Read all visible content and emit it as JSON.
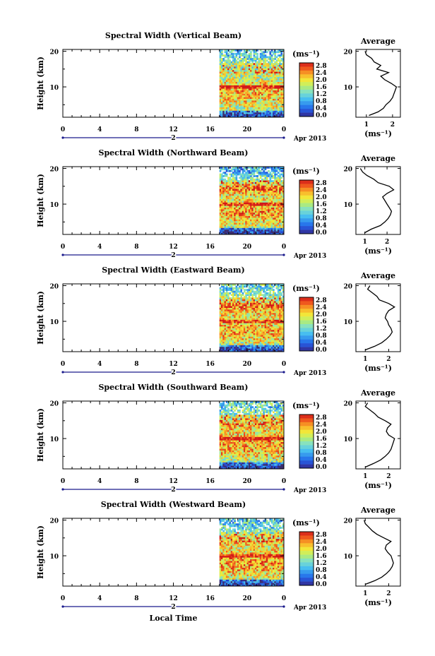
{
  "figure": {
    "date_label": "Apr 2013",
    "date_day": "2",
    "xlabel": "Local Time",
    "colorbar_unit": "(ms⁻¹)",
    "colorbar_ticks": [
      "2.8",
      "2.4",
      "2.0",
      "1.6",
      "1.2",
      "0.8",
      "0.4",
      "0.0"
    ],
    "avg_title": "Average",
    "avg_xlabel": "(ms⁻¹)"
  },
  "chart_data": [
    {
      "type": "heatmap",
      "title": "Spectral Width (Vertical Beam)",
      "ylabel": "Height (km)",
      "xlabel": "Local Time",
      "x_ticks": [
        "0",
        "4",
        "8",
        "12",
        "16",
        "20",
        "0"
      ],
      "y_ticks": [
        "10",
        "20"
      ],
      "xlim": [
        0,
        24
      ],
      "ylim": [
        1.5,
        20.5
      ],
      "data_start_hour": 17,
      "color_range": [
        0.0,
        2.8
      ],
      "profile": {
        "title": "Average",
        "x_ticks": [
          "1",
          "2"
        ],
        "xlim": [
          0.6,
          2.3
        ],
        "height": [
          2,
          3,
          4,
          5,
          6,
          7,
          8,
          9,
          10,
          11,
          12,
          13,
          14,
          15,
          16,
          17,
          18,
          19,
          20
        ],
        "width": [
          1.1,
          1.45,
          1.65,
          1.75,
          1.9,
          2.0,
          2.05,
          2.1,
          2.15,
          1.95,
          1.7,
          1.55,
          1.85,
          1.4,
          1.55,
          1.3,
          1.2,
          1.0,
          0.95
        ]
      }
    },
    {
      "type": "heatmap",
      "title": "Spectral Width (Northward Beam)",
      "ylabel": "Height (km)",
      "xlabel": "Local Time",
      "x_ticks": [
        "0",
        "4",
        "8",
        "12",
        "16",
        "20",
        "0"
      ],
      "y_ticks": [
        "10",
        "20"
      ],
      "xlim": [
        0,
        24
      ],
      "ylim": [
        1.5,
        20.5
      ],
      "data_start_hour": 17,
      "color_range": [
        0.0,
        2.8
      ],
      "profile": {
        "title": "Average",
        "x_ticks": [
          "1",
          "2"
        ],
        "xlim": [
          0.6,
          2.6
        ],
        "height": [
          2,
          3,
          4,
          5,
          6,
          7,
          8,
          9,
          10,
          11,
          12,
          13,
          14,
          15,
          16,
          17,
          18,
          19,
          20
        ],
        "width": [
          1.0,
          1.3,
          1.7,
          1.9,
          2.05,
          2.15,
          2.2,
          2.1,
          2.0,
          1.9,
          1.8,
          2.0,
          2.3,
          2.1,
          1.6,
          1.4,
          1.1,
          0.9,
          0.8
        ]
      }
    },
    {
      "type": "heatmap",
      "title": "Spectral Width (Eastward Beam)",
      "ylabel": "Height (km)",
      "xlabel": "Local Time",
      "x_ticks": [
        "0",
        "4",
        "8",
        "12",
        "16",
        "20",
        "0"
      ],
      "y_ticks": [
        "10",
        "20"
      ],
      "xlim": [
        0,
        24
      ],
      "ylim": [
        1.5,
        20.5
      ],
      "data_start_hour": 17,
      "color_range": [
        0.0,
        2.8
      ],
      "profile": {
        "title": "Average",
        "x_ticks": [
          "1",
          "2"
        ],
        "xlim": [
          0.6,
          2.5
        ],
        "height": [
          2,
          3,
          4,
          5,
          6,
          7,
          8,
          9,
          10,
          11,
          12,
          13,
          14,
          15,
          16,
          17,
          18,
          19,
          20
        ],
        "width": [
          1.0,
          1.4,
          1.7,
          1.9,
          2.05,
          2.15,
          2.1,
          2.0,
          1.95,
          1.85,
          1.9,
          2.0,
          2.25,
          2.0,
          1.6,
          1.5,
          1.3,
          1.1,
          1.2
        ]
      }
    },
    {
      "type": "heatmap",
      "title": "Spectral Width (Southward Beam)",
      "ylabel": "Height (km)",
      "xlabel": "Local Time",
      "x_ticks": [
        "0",
        "4",
        "8",
        "12",
        "16",
        "20",
        "0"
      ],
      "y_ticks": [
        "10",
        "20"
      ],
      "xlim": [
        0,
        24
      ],
      "ylim": [
        1.5,
        20.5
      ],
      "data_start_hour": 17,
      "color_range": [
        0.0,
        2.8
      ],
      "profile": {
        "title": "Average",
        "x_ticks": [
          "1",
          "2"
        ],
        "xlim": [
          0.6,
          2.5
        ],
        "height": [
          2,
          3,
          4,
          5,
          6,
          7,
          8,
          9,
          10,
          11,
          12,
          13,
          14,
          15,
          16,
          17,
          18,
          19,
          20
        ],
        "width": [
          1.0,
          1.35,
          1.65,
          1.85,
          2.0,
          2.1,
          2.15,
          2.2,
          2.25,
          2.0,
          1.9,
          1.95,
          2.1,
          1.85,
          1.55,
          1.4,
          1.2,
          1.0,
          1.1
        ]
      }
    },
    {
      "type": "heatmap",
      "title": "Spectral Width (Westward Beam)",
      "ylabel": "Height (km)",
      "xlabel": "Local Time",
      "x_ticks": [
        "0",
        "4",
        "8",
        "12",
        "16",
        "20",
        "0"
      ],
      "y_ticks": [
        "10",
        "20"
      ],
      "xlim": [
        0,
        24
      ],
      "ylim": [
        1.5,
        20.5
      ],
      "data_start_hour": 17,
      "color_range": [
        0.0,
        2.8
      ],
      "profile": {
        "title": "Average",
        "x_ticks": [
          "1",
          "2"
        ],
        "xlim": [
          0.6,
          2.5
        ],
        "height": [
          2,
          3,
          4,
          5,
          6,
          7,
          8,
          9,
          10,
          11,
          12,
          13,
          14,
          15,
          16,
          17,
          18,
          19,
          20
        ],
        "width": [
          1.0,
          1.4,
          1.7,
          1.9,
          2.05,
          2.15,
          2.2,
          2.15,
          2.1,
          1.95,
          1.85,
          1.9,
          2.1,
          1.8,
          1.5,
          1.3,
          1.15,
          1.0,
          0.95
        ]
      }
    }
  ]
}
